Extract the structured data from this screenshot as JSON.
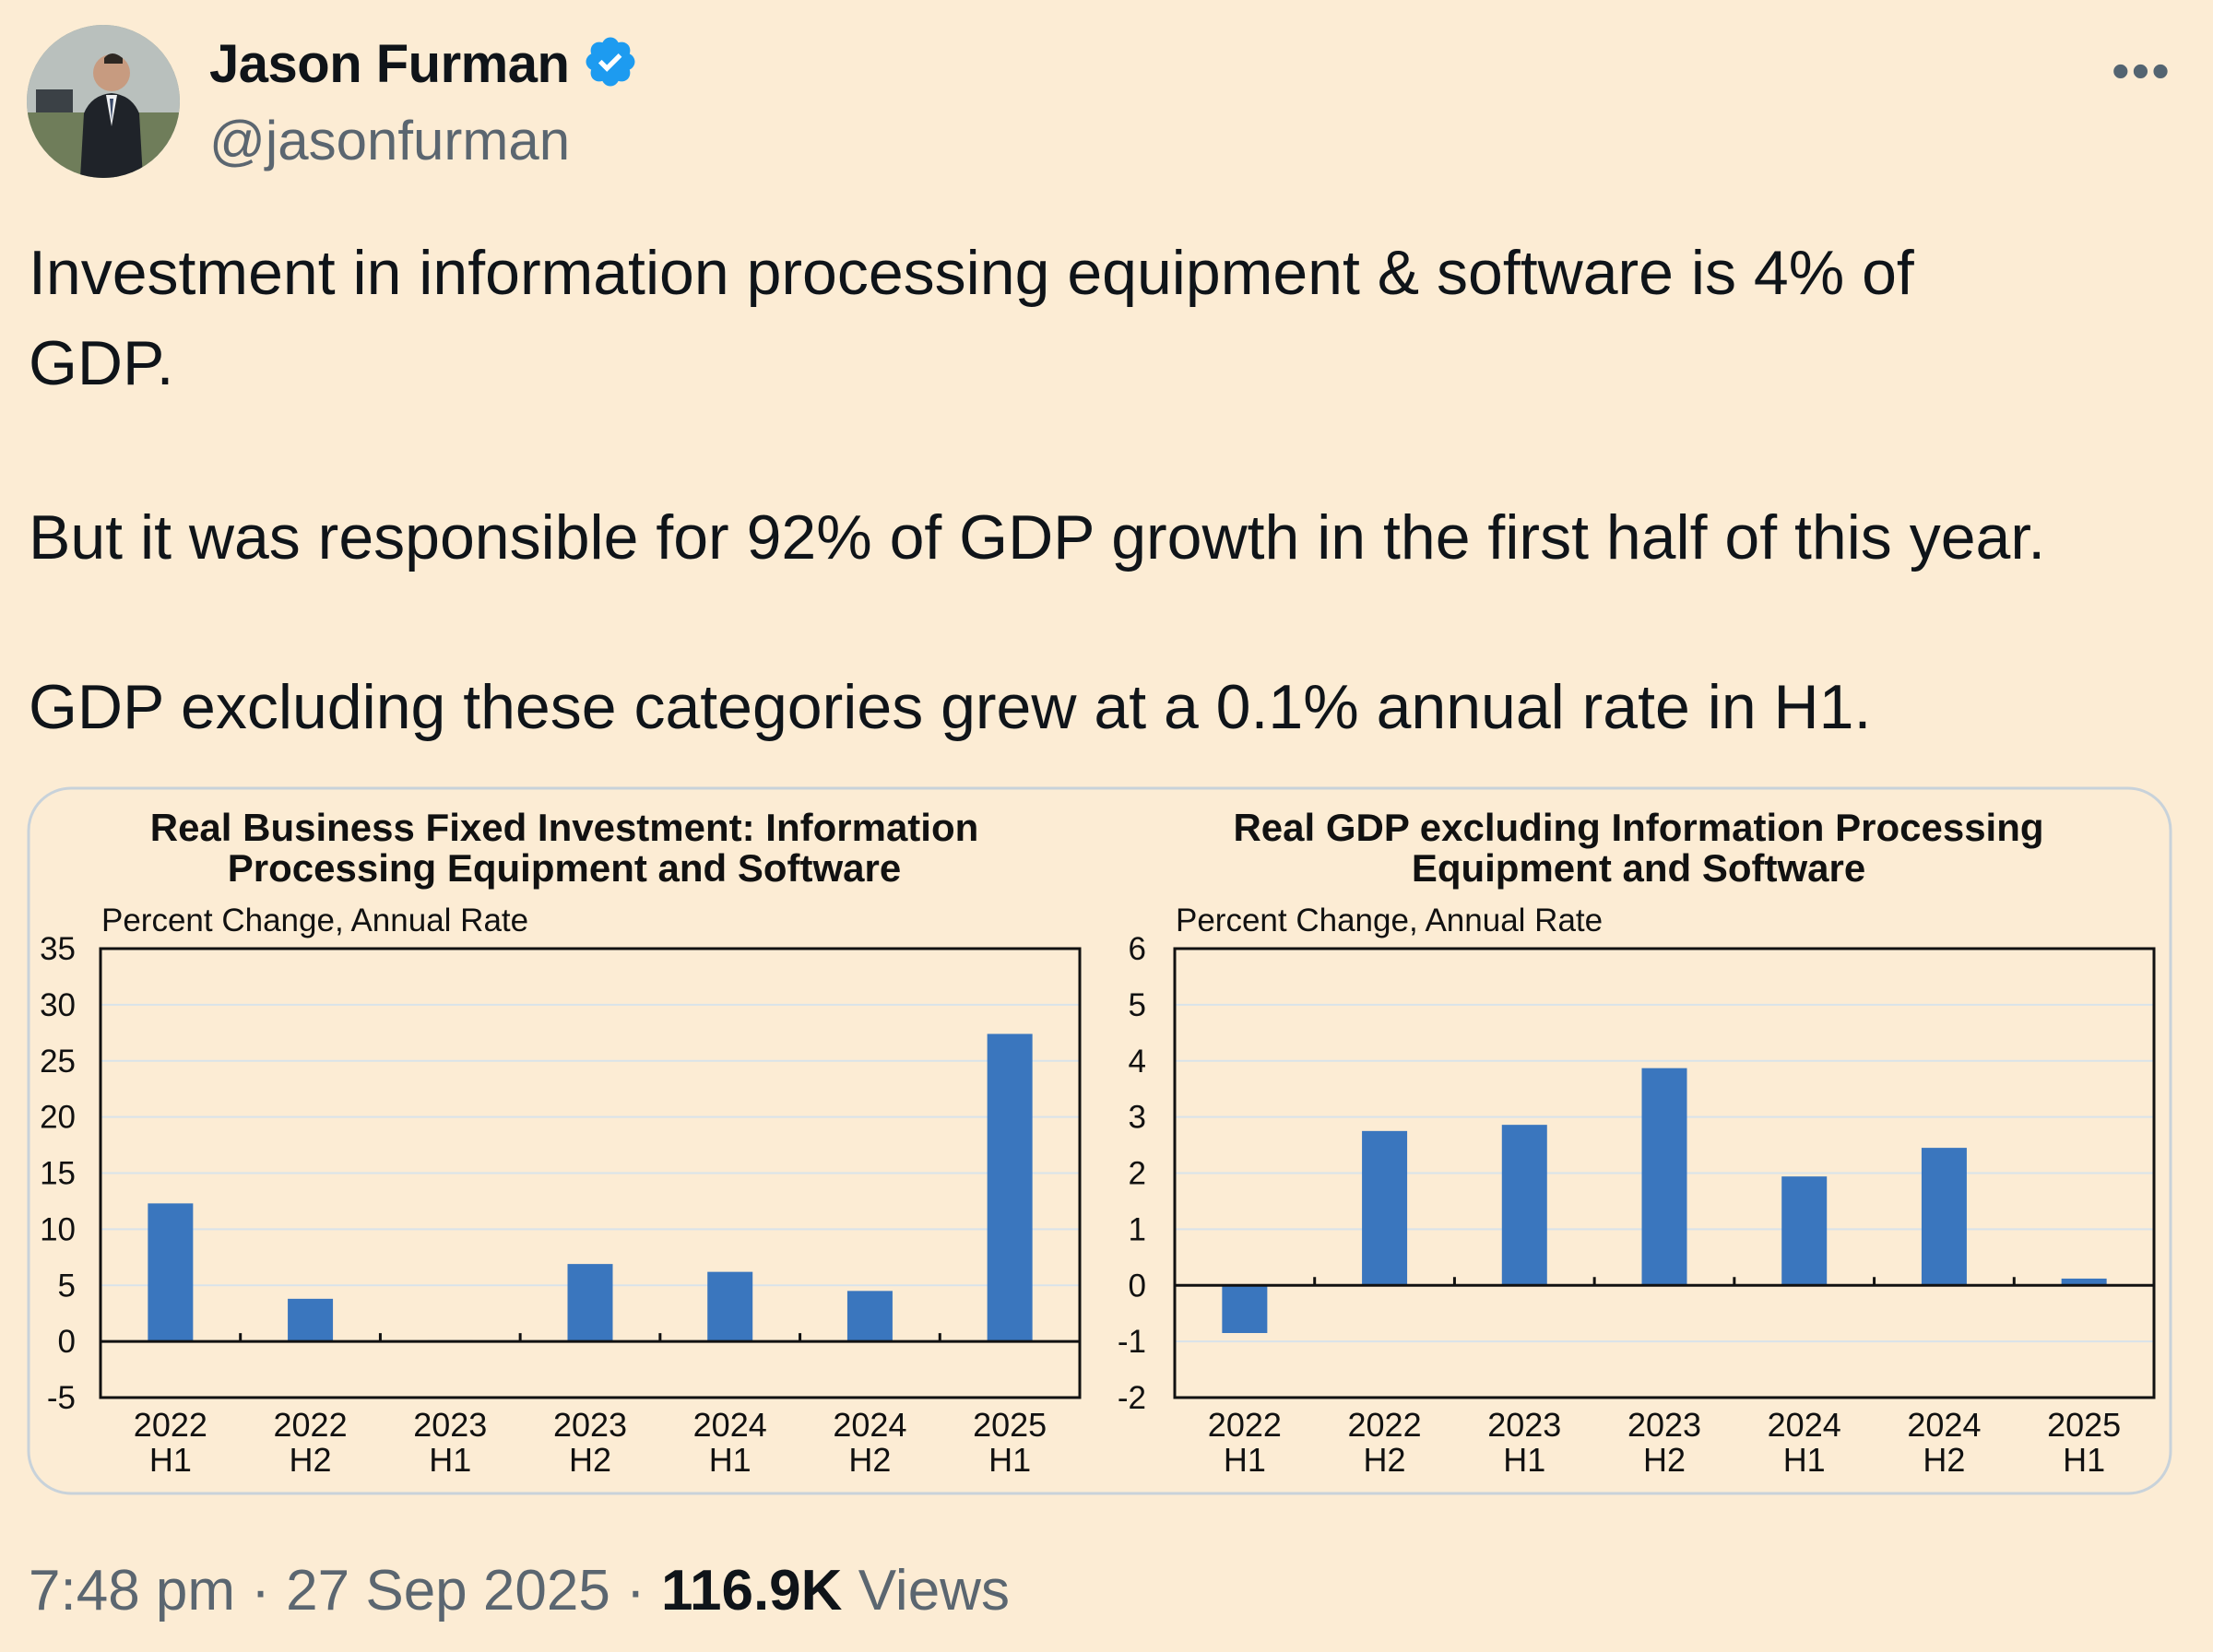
{
  "author": {
    "name": "Jason Furman",
    "handle": "@jasonfurman",
    "verified": true
  },
  "more_icon": "more-horizontal-icon",
  "tweet": {
    "lines": [
      "Investment in information processing equipment & software is 4% of",
      "GDP.",
      "But it was responsible for 92% of GDP growth in the first half of this year.",
      "GDP excluding these categories grew at a 0.1% annual rate in H1."
    ]
  },
  "footer": {
    "time": "7:48 pm",
    "sep1": "·",
    "date": "27 Sep 2025",
    "sep2": "·",
    "views_count": "116.9K",
    "views_label": "Views"
  },
  "colors": {
    "bar": "#3a76be",
    "background": "#fcecd4",
    "verified": "#1d9bf0"
  },
  "chart_data": [
    {
      "type": "bar",
      "title": [
        "Real Business Fixed Investment: Information",
        "Processing Equipment and Software"
      ],
      "ylabel": "Percent Change, Annual Rate",
      "xlabel": "",
      "categories": [
        [
          "2022",
          "H1"
        ],
        [
          "2022",
          "H2"
        ],
        [
          "2023",
          "H1"
        ],
        [
          "2023",
          "H2"
        ],
        [
          "2024",
          "H1"
        ],
        [
          "2024",
          "H2"
        ],
        [
          "2025",
          "H1"
        ]
      ],
      "values": [
        12.3,
        3.8,
        0.1,
        6.9,
        6.2,
        4.5,
        27.4
      ],
      "ylim": [
        -5,
        35
      ],
      "yticks": [
        35,
        30,
        25,
        20,
        15,
        10,
        5,
        0,
        -5
      ],
      "grid": true
    },
    {
      "type": "bar",
      "title": [
        "Real GDP excluding Information Processing",
        "Equipment and Software"
      ],
      "ylabel": "Percent Change, Annual Rate",
      "xlabel": "",
      "categories": [
        [
          "2022",
          "H1"
        ],
        [
          "2022",
          "H2"
        ],
        [
          "2023",
          "H1"
        ],
        [
          "2023",
          "H2"
        ],
        [
          "2024",
          "H1"
        ],
        [
          "2024",
          "H2"
        ],
        [
          "2025",
          "H1"
        ]
      ],
      "values": [
        -0.85,
        2.75,
        2.86,
        3.87,
        1.94,
        2.45,
        0.12
      ],
      "ylim": [
        -2,
        6
      ],
      "yticks": [
        6,
        5,
        4,
        3,
        2,
        1,
        0,
        -1,
        -2
      ],
      "grid": true
    }
  ]
}
